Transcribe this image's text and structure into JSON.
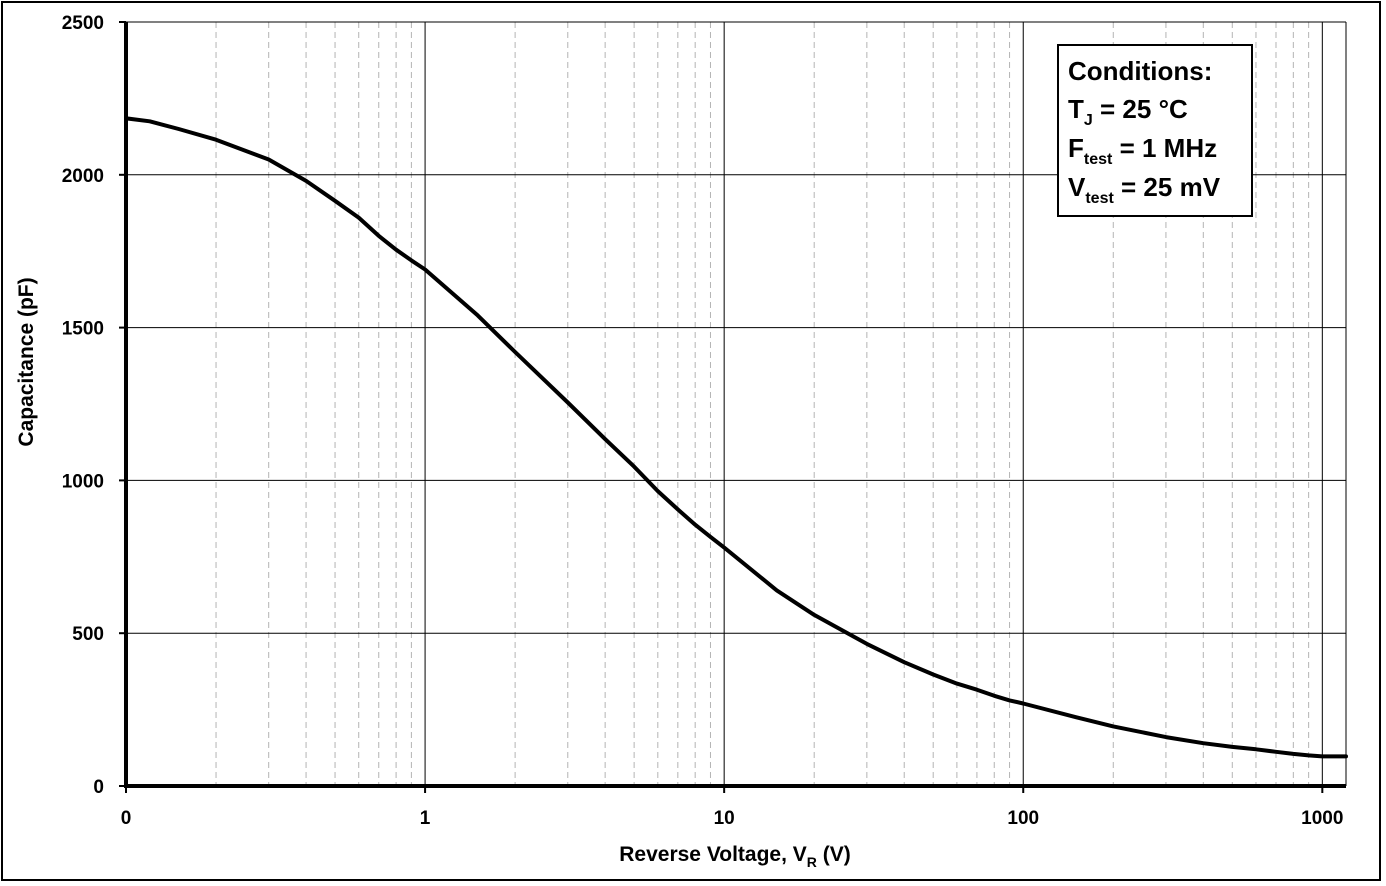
{
  "chart_data": {
    "type": "line",
    "title": "",
    "xlabel": {
      "prefix": "Reverse Voltage, V",
      "subscript": "R",
      "suffix": " (V)"
    },
    "ylabel": "Capacitance (pF)",
    "x_scale": "log",
    "xlim": [
      0.1,
      1200
    ],
    "ylim": [
      0,
      2500
    ],
    "x_ticks": [
      {
        "value": 0.1,
        "label": "0"
      },
      {
        "value": 1,
        "label": "1"
      },
      {
        "value": 10,
        "label": "10"
      },
      {
        "value": 100,
        "label": "100"
      },
      {
        "value": 1000,
        "label": "1000"
      }
    ],
    "y_ticks": [
      {
        "value": 0,
        "label": "0"
      },
      {
        "value": 500,
        "label": "500"
      },
      {
        "value": 1000,
        "label": "1000"
      },
      {
        "value": 1500,
        "label": "1500"
      },
      {
        "value": 2000,
        "label": "2000"
      },
      {
        "value": 2500,
        "label": "2500"
      }
    ],
    "grid": {
      "major": true,
      "minor_x": true
    },
    "series": [
      {
        "name": "Capacitance",
        "color": "#000000",
        "x": [
          0.1,
          0.12,
          0.15,
          0.2,
          0.3,
          0.4,
          0.5,
          0.6,
          0.7,
          0.8,
          0.9,
          1,
          1.5,
          2,
          3,
          4,
          5,
          6,
          7,
          8,
          9,
          10,
          15,
          20,
          30,
          40,
          50,
          60,
          70,
          80,
          90,
          100,
          150,
          200,
          300,
          400,
          500,
          600,
          700,
          800,
          900,
          1000,
          1200
        ],
        "y": [
          2185,
          2175,
          2150,
          2115,
          2050,
          1980,
          1915,
          1860,
          1800,
          1755,
          1720,
          1690,
          1540,
          1420,
          1255,
          1135,
          1045,
          965,
          905,
          855,
          815,
          780,
          640,
          560,
          465,
          405,
          365,
          335,
          315,
          295,
          280,
          270,
          225,
          195,
          160,
          140,
          128,
          120,
          112,
          105,
          100,
          97,
          97
        ]
      }
    ],
    "legend": {
      "title": "Conditions:",
      "lines": [
        {
          "main": "T",
          "sub": "J",
          "rest": " = 25 °C"
        },
        {
          "main": "F",
          "sub": "test",
          "rest": " = 1 MHz"
        },
        {
          "main": "V",
          "sub": "test",
          "rest": " = 25 mV"
        }
      ],
      "position": "top-right"
    }
  }
}
